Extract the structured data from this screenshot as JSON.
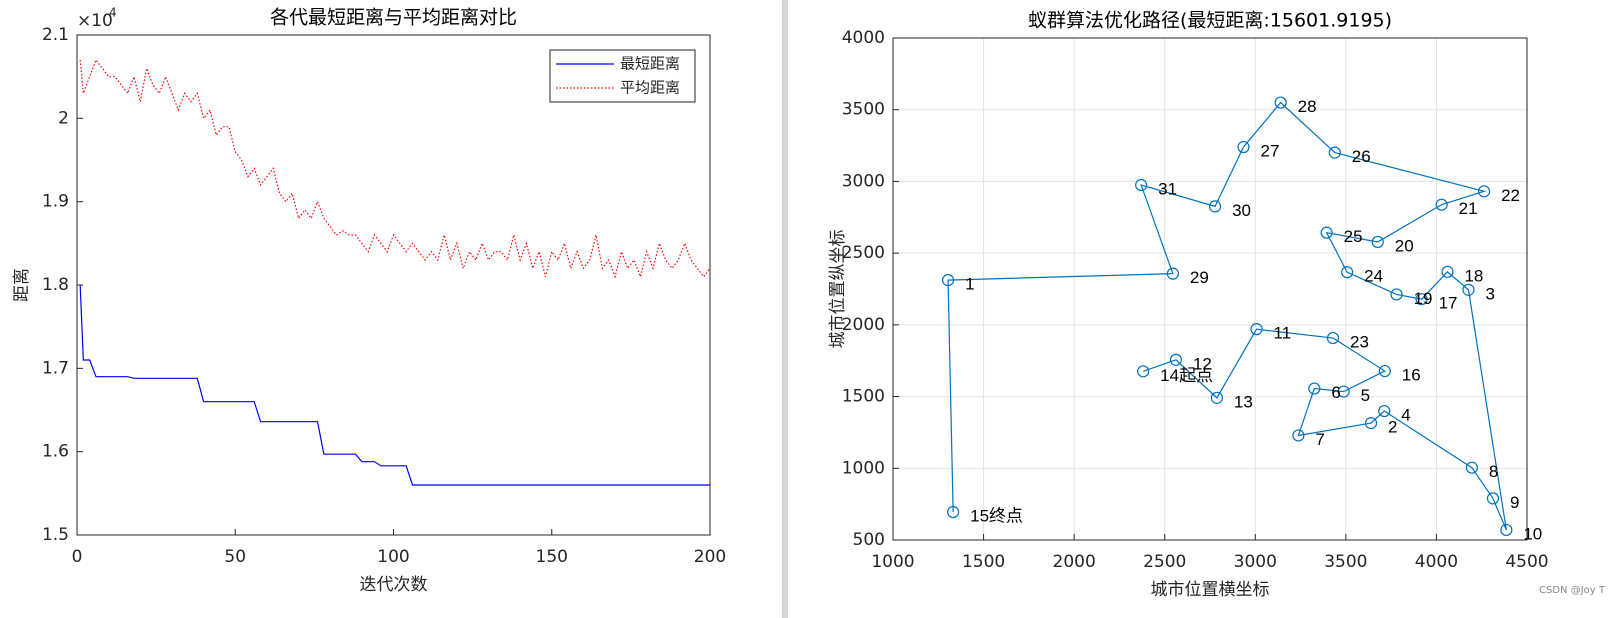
{
  "chart_data": [
    {
      "type": "line",
      "title": "各代最短距离与平均距离对比",
      "x_label": "迭代次数",
      "y_label": "距离",
      "y_multiplier_base": "×10",
      "y_multiplier_exp": "4",
      "xlim": [
        0,
        200
      ],
      "xticks": [
        0,
        50,
        100,
        150,
        200
      ],
      "ylim": [
        1.5,
        2.1
      ],
      "yticks": [
        1.5,
        1.6,
        1.7,
        1.8,
        1.9,
        2,
        2.1
      ],
      "legend": "northeast",
      "grid": false,
      "x": [
        1,
        2,
        4,
        6,
        8,
        10,
        12,
        14,
        16,
        18,
        20,
        22,
        24,
        26,
        28,
        30,
        32,
        34,
        36,
        38,
        40,
        42,
        44,
        46,
        48,
        50,
        52,
        54,
        56,
        58,
        60,
        62,
        64,
        66,
        68,
        70,
        72,
        74,
        76,
        78,
        80,
        82,
        84,
        86,
        88,
        90,
        92,
        94,
        96,
        98,
        100,
        102,
        104,
        106,
        108,
        110,
        112,
        114,
        116,
        118,
        120,
        122,
        124,
        126,
        128,
        130,
        132,
        134,
        136,
        138,
        140,
        142,
        144,
        146,
        148,
        150,
        152,
        154,
        156,
        158,
        160,
        162,
        164,
        166,
        168,
        170,
        172,
        174,
        176,
        178,
        180,
        182,
        184,
        186,
        188,
        190,
        192,
        194,
        196,
        198,
        200
      ],
      "series": [
        {
          "name": "最短距离",
          "color": "#0000ff",
          "line_style": "solid",
          "values": [
            1.8,
            1.71,
            1.71,
            1.69,
            1.69,
            1.69,
            1.69,
            1.69,
            1.69,
            1.688,
            1.688,
            1.688,
            1.688,
            1.688,
            1.688,
            1.688,
            1.688,
            1.688,
            1.688,
            1.688,
            1.66,
            1.66,
            1.66,
            1.66,
            1.66,
            1.66,
            1.66,
            1.66,
            1.66,
            1.636,
            1.636,
            1.636,
            1.636,
            1.636,
            1.636,
            1.636,
            1.636,
            1.636,
            1.636,
            1.597,
            1.597,
            1.597,
            1.597,
            1.597,
            1.597,
            1.588,
            1.588,
            1.588,
            1.583,
            1.583,
            1.583,
            1.583,
            1.583,
            1.56,
            1.56,
            1.56,
            1.56,
            1.56,
            1.56,
            1.56,
            1.56,
            1.56,
            1.56,
            1.56,
            1.56,
            1.56,
            1.56,
            1.56,
            1.56,
            1.56,
            1.56,
            1.56,
            1.56,
            1.56,
            1.56,
            1.56,
            1.56,
            1.56,
            1.56,
            1.56,
            1.56,
            1.56,
            1.56,
            1.56,
            1.56,
            1.56,
            1.56,
            1.56,
            1.56,
            1.56,
            1.56,
            1.56,
            1.56,
            1.56,
            1.56,
            1.56,
            1.56,
            1.56,
            1.56,
            1.56,
            1.56
          ]
        },
        {
          "name": "平均距离",
          "color": "#ff0000",
          "line_style": "dotted",
          "values": [
            2.07,
            2.03,
            2.05,
            2.07,
            2.06,
            2.05,
            2.05,
            2.04,
            2.03,
            2.05,
            2.02,
            2.06,
            2.04,
            2.03,
            2.05,
            2.03,
            2.01,
            2.03,
            2.02,
            2.03,
            2.0,
            2.01,
            1.98,
            1.99,
            1.99,
            1.96,
            1.95,
            1.93,
            1.94,
            1.92,
            1.93,
            1.94,
            1.91,
            1.9,
            1.91,
            1.88,
            1.89,
            1.88,
            1.9,
            1.88,
            1.87,
            1.86,
            1.865,
            1.86,
            1.86,
            1.85,
            1.84,
            1.86,
            1.85,
            1.84,
            1.86,
            1.85,
            1.84,
            1.85,
            1.84,
            1.83,
            1.84,
            1.83,
            1.86,
            1.83,
            1.85,
            1.82,
            1.84,
            1.83,
            1.85,
            1.83,
            1.84,
            1.84,
            1.83,
            1.86,
            1.83,
            1.85,
            1.82,
            1.84,
            1.81,
            1.84,
            1.83,
            1.85,
            1.82,
            1.84,
            1.82,
            1.83,
            1.86,
            1.82,
            1.83,
            1.81,
            1.84,
            1.82,
            1.83,
            1.81,
            1.84,
            1.82,
            1.85,
            1.83,
            1.82,
            1.83,
            1.85,
            1.83,
            1.82,
            1.81,
            1.82
          ]
        }
      ]
    },
    {
      "type": "scatter",
      "connected": true,
      "title": "蚁群算法优化路径(最短距离:15601.9195)",
      "x_label": "城市位置横坐标",
      "y_label": "城市位置纵坐标",
      "grid": true,
      "color": "#0072bd",
      "xlim": [
        1000,
        4500
      ],
      "xticks": [
        1000,
        1500,
        2000,
        2500,
        3000,
        3500,
        4000,
        4500
      ],
      "ylim": [
        500,
        4000
      ],
      "yticks": [
        500,
        1000,
        1500,
        2000,
        2500,
        3000,
        3500,
        4000
      ],
      "labels": [
        "14起点",
        "12",
        "13",
        "11",
        "23",
        "16",
        "5",
        "6",
        "7",
        "2",
        "4",
        "8",
        "9",
        "10",
        "3",
        "18",
        "17",
        "19",
        "24",
        "25",
        "20",
        "21",
        "22",
        "26",
        "28",
        "27",
        "30",
        "31",
        "29",
        "1",
        "15终点"
      ],
      "x": [
        2381,
        2562,
        2788,
        3007,
        3429,
        3715,
        3488,
        3326,
        3238,
        3639,
        3712,
        4196,
        4312,
        4386,
        4177,
        4061,
        3918,
        3780,
        3507,
        3394,
        3676,
        4029,
        4263,
        3439,
        3140,
        2935,
        2778,
        2370,
        2545,
        1304,
        1332
      ],
      "values": [
        1676,
        1756,
        1491,
        1970,
        1908,
        1678,
        1535,
        1556,
        1229,
        1315,
        1399,
        1004,
        790,
        570,
        2244,
        2370,
        2179,
        2212,
        2367,
        2643,
        2578,
        2838,
        2931,
        3201,
        3550,
        3240,
        2826,
        2975,
        2357,
        2312,
        695
      ],
      "watermark": "CSDN @Joy T"
    }
  ]
}
